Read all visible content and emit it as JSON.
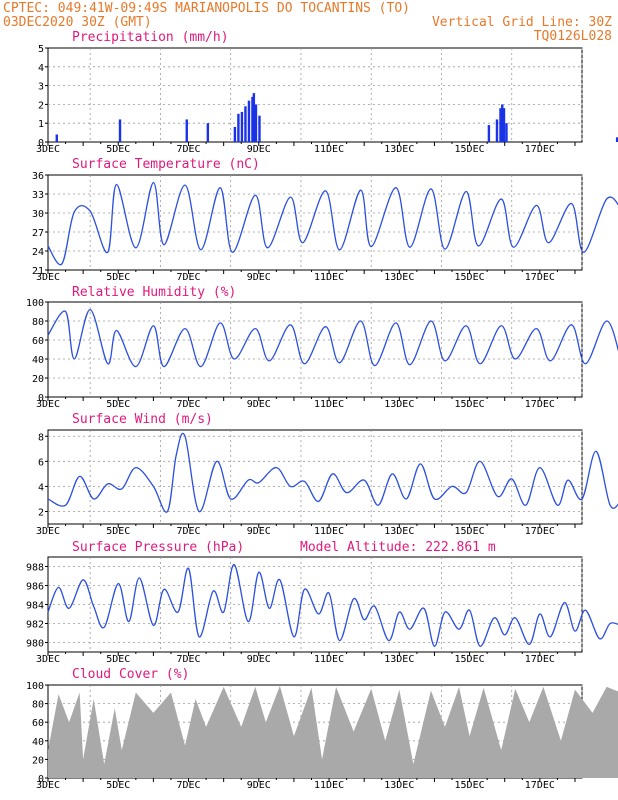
{
  "header": {
    "line1": "CPTEC:  049:41W-09:49S  MARIANOPOLIS DO TOCANTINS (TO)",
    "line2_left": "03DEC2020 30Z (GMT)",
    "line2_right": "Vertical Grid Line: 30Z",
    "line3_right": "TQ0126L028"
  },
  "x_labels": [
    "3DEC",
    "5DEC",
    "7DEC",
    "9DEC",
    "11DEC",
    "13DEC",
    "15DEC",
    "17DEC"
  ],
  "colors": {
    "line": "#2b4fe0",
    "bar": "#1a33e6",
    "cloud": "#a9a9a9",
    "title": "#e0197d",
    "header": "#e8792a"
  },
  "chart_data": [
    {
      "type": "bar",
      "title": "Precipitation (mm/h)",
      "ylim": [
        0,
        5
      ],
      "yticks": [
        0,
        1,
        2,
        3,
        4,
        5
      ],
      "x": [
        0.25,
        2.05,
        3.95,
        4.55,
        5.32,
        5.42,
        5.52,
        5.62,
        5.72,
        5.82,
        5.86,
        5.92,
        6.02,
        12.55,
        12.78,
        12.88,
        12.93,
        12.98,
        13.05,
        16.2
      ],
      "values": [
        0.4,
        1.2,
        1.2,
        1.0,
        0.8,
        1.5,
        1.6,
        1.9,
        2.2,
        2.4,
        2.6,
        2.0,
        1.4,
        0.9,
        1.2,
        1.8,
        2.0,
        1.8,
        1.0,
        0.25
      ]
    },
    {
      "type": "line",
      "title": "Surface Temperature (nC)",
      "ylim": [
        21,
        36
      ],
      "yticks": [
        21,
        24,
        27,
        30,
        33,
        36
      ],
      "x": [
        0,
        0.4,
        0.75,
        1.2,
        1.7,
        1.95,
        2.5,
        3.0,
        3.3,
        3.9,
        4.35,
        4.9,
        5.25,
        5.9,
        6.25,
        6.9,
        7.25,
        7.9,
        8.3,
        8.9,
        9.2,
        9.9,
        10.3,
        10.9,
        11.3,
        11.9,
        12.25,
        12.9,
        13.25,
        13.9,
        14.25,
        14.9,
        15.25,
        15.9,
        16.3
      ],
      "values": [
        24.8,
        22.0,
        30.2,
        30.3,
        23.8,
        34.5,
        24.5,
        34.8,
        25.0,
        34.4,
        24.2,
        34.0,
        23.8,
        32.8,
        24.5,
        32.5,
        25.3,
        33.5,
        24.2,
        33.6,
        24.7,
        34.0,
        24.6,
        33.8,
        24.3,
        33.4,
        24.8,
        32.2,
        24.6,
        31.2,
        25.3,
        31.5,
        23.8,
        32.2,
        30.8
      ]
    },
    {
      "type": "line",
      "title": "Relative Humidity (%)",
      "ylim": [
        0,
        100
      ],
      "yticks": [
        0,
        20,
        40,
        60,
        80,
        100
      ],
      "x": [
        0,
        0.5,
        0.75,
        1.2,
        1.7,
        1.95,
        2.5,
        3.0,
        3.3,
        3.9,
        4.35,
        4.9,
        5.3,
        5.9,
        6.3,
        6.9,
        7.3,
        7.9,
        8.3,
        8.9,
        9.3,
        9.9,
        10.3,
        10.9,
        11.3,
        11.9,
        12.3,
        12.9,
        13.3,
        13.9,
        14.3,
        14.9,
        15.3,
        15.9,
        16.3
      ],
      "values": [
        65,
        90,
        40,
        92,
        35,
        70,
        32,
        75,
        32,
        72,
        32,
        78,
        40,
        72,
        38,
        76,
        35,
        74,
        36,
        80,
        33,
        78,
        34,
        80,
        38,
        75,
        35,
        75,
        40,
        72,
        38,
        76,
        35,
        80,
        40
      ]
    },
    {
      "type": "line",
      "title": "Surface Wind (m/s)",
      "ylim": [
        1,
        8.5
      ],
      "yticks": [
        2,
        4,
        6,
        8
      ],
      "x": [
        0,
        0.5,
        0.9,
        1.3,
        1.7,
        2.1,
        2.5,
        3.0,
        3.4,
        3.65,
        3.9,
        4.3,
        4.8,
        5.2,
        5.7,
        6.0,
        6.5,
        6.9,
        7.3,
        7.7,
        8.1,
        8.5,
        9.0,
        9.4,
        9.8,
        10.2,
        10.6,
        11.0,
        11.5,
        11.9,
        12.3,
        12.8,
        13.2,
        13.6,
        14.0,
        14.5,
        14.8,
        15.2,
        15.6,
        16.0,
        16.3
      ],
      "values": [
        3,
        2.5,
        4.8,
        3.0,
        4.2,
        3.8,
        5.5,
        4.0,
        2.0,
        6.5,
        8.0,
        2.0,
        6.0,
        3.0,
        4.5,
        4.3,
        5.5,
        4.0,
        4.4,
        2.8,
        5.0,
        3.5,
        4.5,
        2.5,
        5.0,
        3.0,
        5.8,
        3.0,
        4.0,
        3.5,
        6.0,
        3.2,
        4.6,
        2.5,
        5.5,
        2.5,
        4.5,
        3.0,
        6.8,
        2.5,
        2.8
      ]
    },
    {
      "type": "line",
      "title": "Surface Pressure (hPa)",
      "subtitle": "Model Altitude: 222.861 m",
      "ylim": [
        979,
        989
      ],
      "yticks": [
        980,
        982,
        984,
        986,
        988
      ],
      "x": [
        0,
        0.3,
        0.6,
        1.0,
        1.3,
        1.6,
        2.0,
        2.3,
        2.6,
        3.0,
        3.3,
        3.7,
        4.0,
        4.3,
        4.7,
        5.0,
        5.3,
        5.7,
        6.0,
        6.3,
        6.6,
        7.0,
        7.3,
        7.7,
        8.0,
        8.3,
        8.7,
        9.0,
        9.3,
        9.7,
        10.0,
        10.3,
        10.7,
        11.0,
        11.3,
        11.7,
        12.0,
        12.3,
        12.7,
        13.0,
        13.3,
        13.7,
        14.0,
        14.3,
        14.7,
        15.0,
        15.3,
        15.7,
        16.0,
        16.3
      ],
      "values": [
        983.2,
        985.8,
        983.6,
        986.6,
        983.8,
        981.6,
        986.2,
        982.2,
        986.8,
        981.8,
        985.6,
        983.2,
        987.8,
        980.6,
        985.4,
        983.2,
        988.2,
        982.2,
        987.4,
        983.6,
        986.6,
        980.6,
        985.6,
        983.0,
        985.2,
        980.2,
        984.6,
        982.4,
        983.8,
        980.2,
        983.2,
        981.4,
        983.6,
        979.6,
        983.2,
        981.4,
        983.4,
        979.6,
        982.6,
        980.8,
        982.6,
        979.8,
        983.0,
        980.6,
        984.2,
        981.2,
        983.4,
        980.4,
        982.0,
        981.8
      ]
    },
    {
      "type": "area",
      "title": "Cloud Cover (%)",
      "ylim": [
        0,
        100
      ],
      "yticks": [
        0,
        20,
        40,
        60,
        80,
        100
      ],
      "x": [
        0,
        0.3,
        0.6,
        0.9,
        1.0,
        1.3,
        1.6,
        1.9,
        2.1,
        2.5,
        3.0,
        3.5,
        3.9,
        4.2,
        4.5,
        5.0,
        5.5,
        5.9,
        6.2,
        6.6,
        7.0,
        7.5,
        7.8,
        8.2,
        8.7,
        9.2,
        9.6,
        10.0,
        10.4,
        10.9,
        11.3,
        11.7,
        12.0,
        12.4,
        12.9,
        13.3,
        13.7,
        14.1,
        14.6,
        15.0,
        15.5,
        15.9,
        16.3
      ],
      "values": [
        30,
        90,
        60,
        92,
        20,
        85,
        15,
        75,
        30,
        92,
        70,
        92,
        35,
        85,
        55,
        98,
        55,
        98,
        60,
        99,
        45,
        97,
        20,
        98,
        50,
        96,
        40,
        95,
        15,
        94,
        55,
        98,
        45,
        97,
        30,
        96,
        60,
        98,
        40,
        95,
        70,
        98,
        92
      ]
    }
  ]
}
